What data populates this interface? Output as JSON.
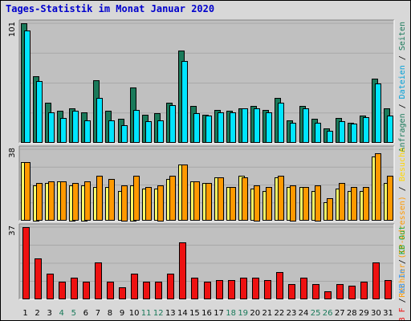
{
  "title": "Tages-Statistik im Monat Januar 2020",
  "chart_data": [
    {
      "type": "bar",
      "panel": "top",
      "y_max_label": "101",
      "ylim": [
        0,
        101
      ],
      "legend_position": "right",
      "categories": [
        "1",
        "2",
        "3",
        "4",
        "5",
        "6",
        "7",
        "8",
        "9",
        "10",
        "11",
        "12",
        "13",
        "14",
        "15",
        "16",
        "17",
        "18",
        "19",
        "20",
        "21",
        "22",
        "23",
        "24",
        "25",
        "26",
        "27",
        "28",
        "29",
        "30",
        "31"
      ],
      "series": [
        {
          "name": "Anfragen",
          "color": "#1a7a5a",
          "values": [
            101,
            56,
            34,
            27,
            29,
            26,
            53,
            27,
            20,
            47,
            24,
            25,
            34,
            78,
            31,
            24,
            28,
            27,
            29,
            31,
            28,
            38,
            19,
            31,
            20,
            12,
            21,
            17,
            23,
            54,
            29
          ]
        },
        {
          "name": "Dateien",
          "color": "#00e5ff",
          "values": [
            95,
            52,
            26,
            21,
            27,
            19,
            38,
            19,
            15,
            28,
            18,
            19,
            32,
            69,
            25,
            23,
            26,
            26,
            29,
            29,
            26,
            34,
            17,
            29,
            17,
            10,
            18,
            16,
            22,
            50,
            23
          ]
        }
      ],
      "legend": [
        {
          "label": "Anfragen",
          "color": "#1a7a5a"
        },
        {
          "label": " / ",
          "color": "#000000"
        },
        {
          "label": "Dateien",
          "color": "#00a0d8"
        },
        {
          "label": " / ",
          "color": "#000000"
        },
        {
          "label": "Seiten",
          "color": "#1a7a5a"
        }
      ]
    },
    {
      "type": "bar",
      "panel": "middle",
      "y_max_label": "38",
      "ylim": [
        0,
        38
      ],
      "legend_position": "right",
      "categories": [
        "1",
        "2",
        "3",
        "4",
        "5",
        "6",
        "7",
        "8",
        "9",
        "10",
        "11",
        "12",
        "13",
        "14",
        "15",
        "16",
        "17",
        "18",
        "19",
        "20",
        "21",
        "22",
        "23",
        "24",
        "25",
        "26",
        "27",
        "28",
        "29",
        "30",
        "31"
      ],
      "series": [
        {
          "name": "Rechner (IP-Adressen)",
          "color": "#ffff66",
          "values": [
            31,
            19,
            20,
            21,
            19,
            19,
            18,
            18,
            16,
            19,
            17,
            17,
            22,
            30,
            21,
            20,
            23,
            18,
            24,
            17,
            16,
            23,
            18,
            18,
            16,
            10,
            17,
            16,
            16,
            34,
            20
          ]
        },
        {
          "name": "Besuche",
          "color": "#ff9900",
          "values": [
            31,
            20,
            21,
            21,
            20,
            21,
            24,
            22,
            19,
            24,
            18,
            19,
            24,
            30,
            21,
            20,
            23,
            18,
            23,
            19,
            18,
            24,
            19,
            18,
            19,
            12,
            20,
            18,
            18,
            36,
            24
          ]
        }
      ],
      "legend": [
        {
          "label": "Rechner (IP-Adressen)",
          "color": "#ff9900"
        },
        {
          "label": " / ",
          "color": "#000000"
        },
        {
          "label": "Besuche",
          "color": "#ffd700"
        }
      ]
    },
    {
      "type": "bar",
      "panel": "bottom",
      "y_max_label": "37",
      "ylim": [
        0,
        37
      ],
      "legend_position": "right",
      "categories": [
        "1",
        "2",
        "3",
        "4",
        "5",
        "6",
        "7",
        "8",
        "9",
        "10",
        "11",
        "12",
        "13",
        "14",
        "15",
        "16",
        "17",
        "18",
        "19",
        "20",
        "21",
        "22",
        "23",
        "24",
        "25",
        "26",
        "27",
        "28",
        "29",
        "30",
        "31"
      ],
      "series": [
        {
          "name": "KB F",
          "color": "#ee1111",
          "values": [
            37,
            21,
            13,
            9,
            11,
            9,
            19,
            9,
            6,
            13,
            9,
            9,
            13,
            29,
            11,
            9,
            10,
            10,
            11,
            11,
            10,
            14,
            8,
            11,
            8,
            4,
            8,
            7,
            9,
            19,
            10
          ]
        }
      ],
      "legend": [
        {
          "label": "KB F",
          "color": "#ee1111"
        },
        {
          "label": " / ",
          "color": "#000000"
        },
        {
          "label": "KB In",
          "color": "#3399ff"
        },
        {
          "label": " / ",
          "color": "#000000"
        },
        {
          "label": "KB Out",
          "color": "#22aa44"
        }
      ]
    }
  ],
  "x_labels": [
    {
      "label": "1",
      "color": "#000000"
    },
    {
      "label": "2",
      "color": "#000000"
    },
    {
      "label": "3",
      "color": "#000000"
    },
    {
      "label": "4",
      "color": "#1a7a5a"
    },
    {
      "label": "5",
      "color": "#1a7a5a"
    },
    {
      "label": "6",
      "color": "#000000"
    },
    {
      "label": "7",
      "color": "#000000"
    },
    {
      "label": "8",
      "color": "#000000"
    },
    {
      "label": "9",
      "color": "#000000"
    },
    {
      "label": "10",
      "color": "#000000"
    },
    {
      "label": "11",
      "color": "#1a7a5a"
    },
    {
      "label": "12",
      "color": "#1a7a5a"
    },
    {
      "label": "13",
      "color": "#000000"
    },
    {
      "label": "14",
      "color": "#000000"
    },
    {
      "label": "15",
      "color": "#000000"
    },
    {
      "label": "16",
      "color": "#000000"
    },
    {
      "label": "17",
      "color": "#000000"
    },
    {
      "label": "18",
      "color": "#1a7a5a"
    },
    {
      "label": "19",
      "color": "#1a7a5a"
    },
    {
      "label": "20",
      "color": "#000000"
    },
    {
      "label": "21",
      "color": "#000000"
    },
    {
      "label": "22",
      "color": "#000000"
    },
    {
      "label": "23",
      "color": "#000000"
    },
    {
      "label": "24",
      "color": "#000000"
    },
    {
      "label": "25",
      "color": "#1a7a5a"
    },
    {
      "label": "26",
      "color": "#1a7a5a"
    },
    {
      "label": "27",
      "color": "#000000"
    },
    {
      "label": "28",
      "color": "#000000"
    },
    {
      "label": "29",
      "color": "#000000"
    },
    {
      "label": "30",
      "color": "#000000"
    },
    {
      "label": "31",
      "color": "#000000"
    }
  ]
}
